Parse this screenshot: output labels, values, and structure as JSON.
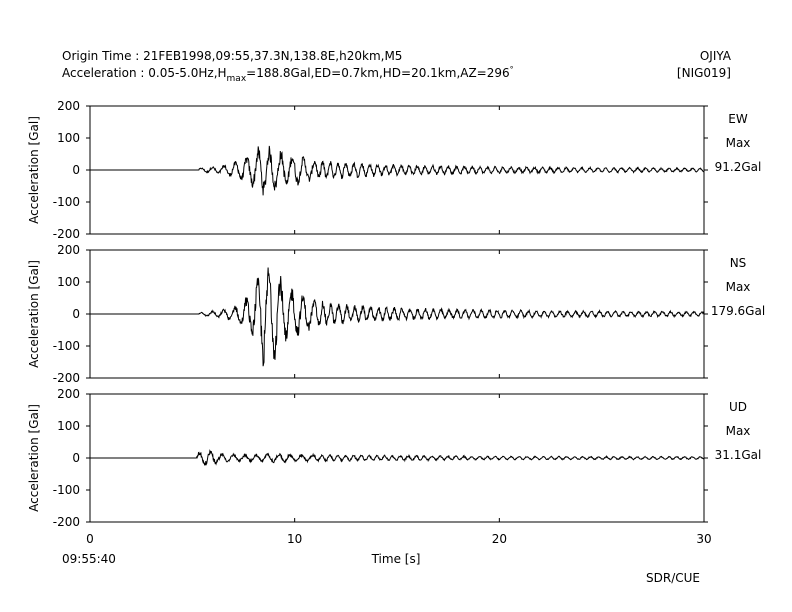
{
  "header": {
    "line1": "Origin Time : 21FEB1998,09:55,37.3N,138.8E,h20km,M5",
    "line2_prefix": "Acceleration : 0.05-5.0Hz,H",
    "line2_sub": "max",
    "line2_suffix": "=188.8Gal,ED=0.7km,HD=20.1km,AZ=296",
    "line2_sup": "°",
    "station": "OJIYA",
    "station_code": "[NIG019]"
  },
  "footer": {
    "start_time": "09:55:40",
    "credit": "SDR/CUE"
  },
  "chart_data": [
    {
      "type": "line",
      "component": "EW",
      "max_label": "Max",
      "max_value": "91.2Gal",
      "ylabel": "Acceleration [Gal]",
      "xlim": [
        0,
        30
      ],
      "ylim": [
        -200,
        200
      ],
      "yticks": [
        -200,
        -100,
        0,
        100,
        200
      ],
      "xticks": [
        0,
        10,
        20,
        30
      ],
      "quiet_until_s": 5.3,
      "envelope": [
        [
          5.3,
          6
        ],
        [
          6.5,
          15
        ],
        [
          7.2,
          30
        ],
        [
          7.9,
          55
        ],
        [
          8.4,
          85
        ],
        [
          9.0,
          70
        ],
        [
          9.8,
          55
        ],
        [
          11,
          35
        ],
        [
          13,
          25
        ],
        [
          15,
          18
        ],
        [
          18,
          14
        ],
        [
          22,
          10
        ],
        [
          30,
          6
        ]
      ]
    },
    {
      "type": "line",
      "component": "NS",
      "max_label": "Max",
      "max_value": "179.6Gal",
      "ylabel": "Acceleration [Gal]",
      "xlim": [
        0,
        30
      ],
      "ylim": [
        -200,
        200
      ],
      "yticks": [
        -200,
        -100,
        0,
        100,
        200
      ],
      "xticks": [
        0,
        10,
        20,
        30
      ],
      "quiet_until_s": 5.3,
      "envelope": [
        [
          5.3,
          5
        ],
        [
          6.5,
          15
        ],
        [
          7.3,
          35
        ],
        [
          8.0,
          80
        ],
        [
          8.5,
          175
        ],
        [
          9.2,
          140
        ],
        [
          10,
          80
        ],
        [
          11,
          45
        ],
        [
          13,
          30
        ],
        [
          15,
          22
        ],
        [
          18,
          16
        ],
        [
          22,
          12
        ],
        [
          30,
          8
        ]
      ]
    },
    {
      "type": "line",
      "component": "UD",
      "max_label": "Max",
      "max_value": "31.1Gal",
      "ylabel": "Acceleration [Gal]",
      "xlim": [
        0,
        30
      ],
      "ylim": [
        -200,
        200
      ],
      "yticks": [
        -200,
        -100,
        0,
        100,
        200
      ],
      "xticks": [
        0,
        10,
        20,
        30
      ],
      "quiet_until_s": 5.2,
      "envelope": [
        [
          5.2,
          20
        ],
        [
          5.8,
          30
        ],
        [
          6.5,
          14
        ],
        [
          8,
          12
        ],
        [
          9,
          16
        ],
        [
          10,
          12
        ],
        [
          13,
          10
        ],
        [
          16,
          8
        ],
        [
          20,
          6
        ],
        [
          30,
          5
        ]
      ]
    }
  ],
  "x_axis": {
    "xlabel": "Time [s]",
    "tick_labels": [
      "0",
      "10",
      "20",
      "30"
    ]
  }
}
